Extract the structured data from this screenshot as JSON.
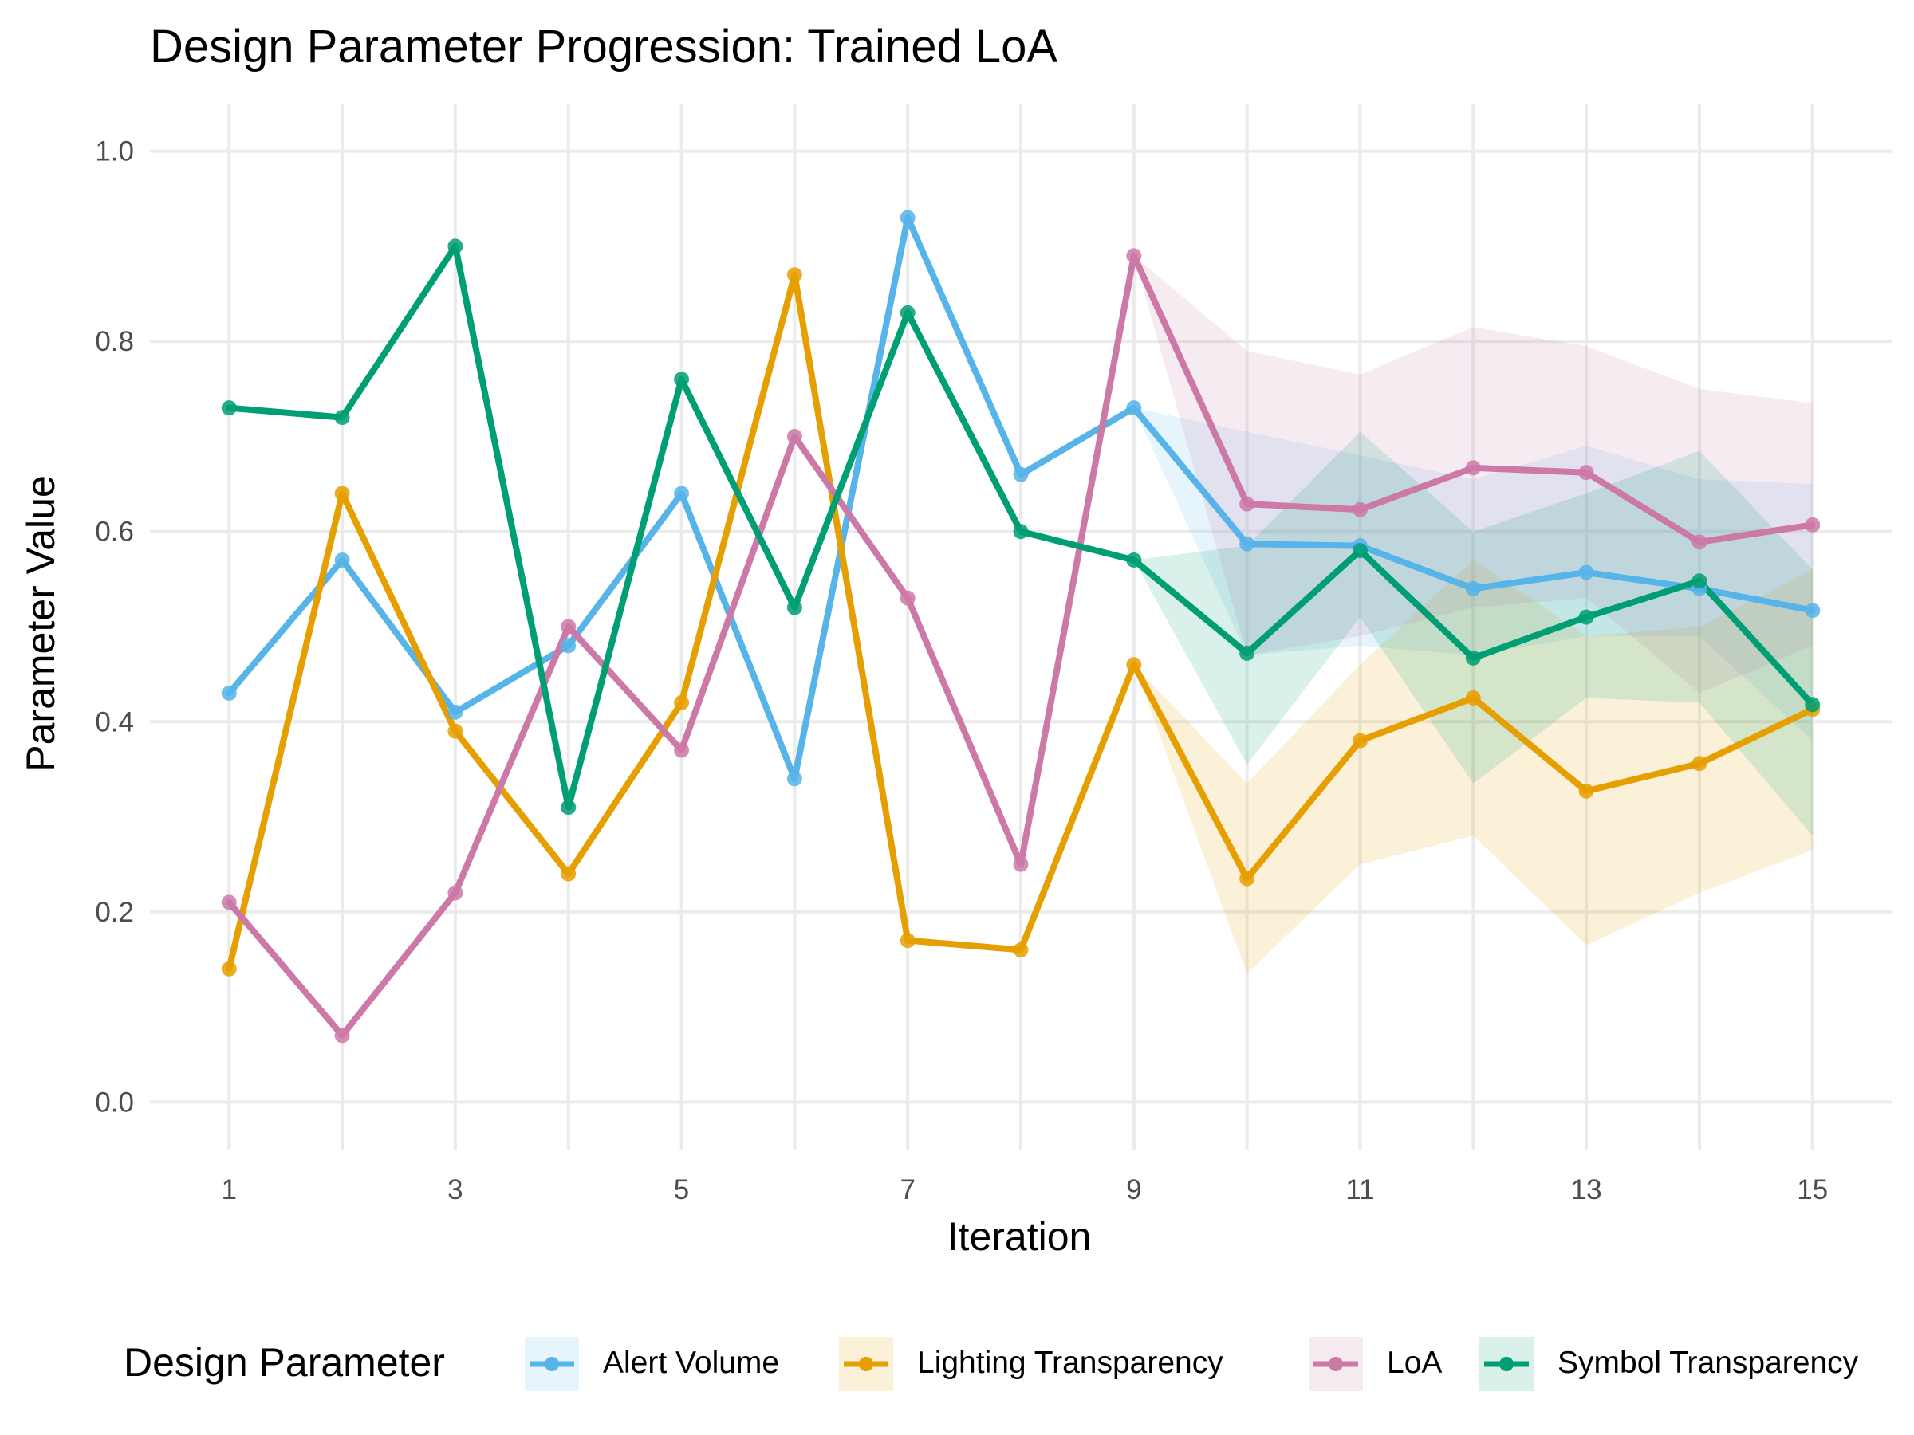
{
  "chart_data": {
    "type": "line",
    "title": "Design Parameter Progression: Trained LoA",
    "xlabel": "Iteration",
    "ylabel": "Parameter Value",
    "xlim": [
      0.3,
      15.7
    ],
    "ylim": [
      -0.05,
      1.05
    ],
    "x_ticks": [
      1,
      3,
      5,
      7,
      9,
      11,
      13,
      15
    ],
    "y_ticks": [
      0.0,
      0.2,
      0.4,
      0.6,
      0.8,
      1.0
    ],
    "y_tick_labels": [
      "0.0",
      "0.2",
      "0.4",
      "0.6",
      "0.8",
      "1.0"
    ],
    "grid": true,
    "legend_title": "Design Parameter",
    "legend_position": "bottom",
    "x": [
      1,
      2,
      3,
      4,
      5,
      6,
      7,
      8,
      9,
      10,
      11,
      12,
      13,
      14,
      15
    ],
    "series": [
      {
        "name": "Alert Volume",
        "color": "#56B4E9",
        "values": [
          0.43,
          0.57,
          0.41,
          0.48,
          0.64,
          0.34,
          0.93,
          0.66,
          0.73,
          0.587,
          0.585,
          0.54,
          0.557,
          0.54,
          0.517
        ],
        "band": {
          "x": [
            9,
            10,
            11,
            12,
            13,
            14,
            15
          ],
          "lower": [
            0.73,
            0.47,
            0.48,
            0.47,
            0.49,
            0.49,
            0.38
          ],
          "upper": [
            0.73,
            0.705,
            0.68,
            0.655,
            0.69,
            0.655,
            0.65
          ]
        }
      },
      {
        "name": "Lighting Transparency",
        "color": "#E69F00",
        "values": [
          0.14,
          0.64,
          0.39,
          0.24,
          0.42,
          0.87,
          0.17,
          0.16,
          0.46,
          0.235,
          0.38,
          0.425,
          0.327,
          0.356,
          0.413
        ],
        "band": {
          "x": [
            9,
            10,
            11,
            12,
            13,
            14,
            15
          ],
          "lower": [
            0.46,
            0.135,
            0.25,
            0.28,
            0.165,
            0.22,
            0.265
          ],
          "upper": [
            0.46,
            0.335,
            0.46,
            0.57,
            0.49,
            0.5,
            0.56
          ]
        }
      },
      {
        "name": "LoA",
        "color": "#CC79A7",
        "values": [
          0.21,
          0.07,
          0.22,
          0.5,
          0.37,
          0.7,
          0.53,
          0.25,
          0.89,
          0.629,
          0.623,
          0.667,
          0.662,
          0.589,
          0.607
        ],
        "band": {
          "x": [
            9,
            10,
            11,
            12,
            13,
            14,
            15
          ],
          "lower": [
            0.89,
            0.47,
            0.49,
            0.52,
            0.53,
            0.43,
            0.48
          ],
          "upper": [
            0.89,
            0.79,
            0.765,
            0.815,
            0.795,
            0.75,
            0.735
          ]
        }
      },
      {
        "name": "Symbol Transparency",
        "color": "#009E73",
        "values": [
          0.73,
          0.72,
          0.9,
          0.31,
          0.76,
          0.52,
          0.83,
          0.6,
          0.57,
          0.472,
          0.58,
          0.467,
          0.51,
          0.548,
          0.418
        ],
        "band": {
          "x": [
            9,
            10,
            11,
            12,
            13,
            14,
            15
          ],
          "lower": [
            0.57,
            0.355,
            0.51,
            0.335,
            0.425,
            0.42,
            0.28
          ],
          "upper": [
            0.57,
            0.585,
            0.705,
            0.6,
            0.64,
            0.685,
            0.56
          ]
        }
      }
    ]
  }
}
